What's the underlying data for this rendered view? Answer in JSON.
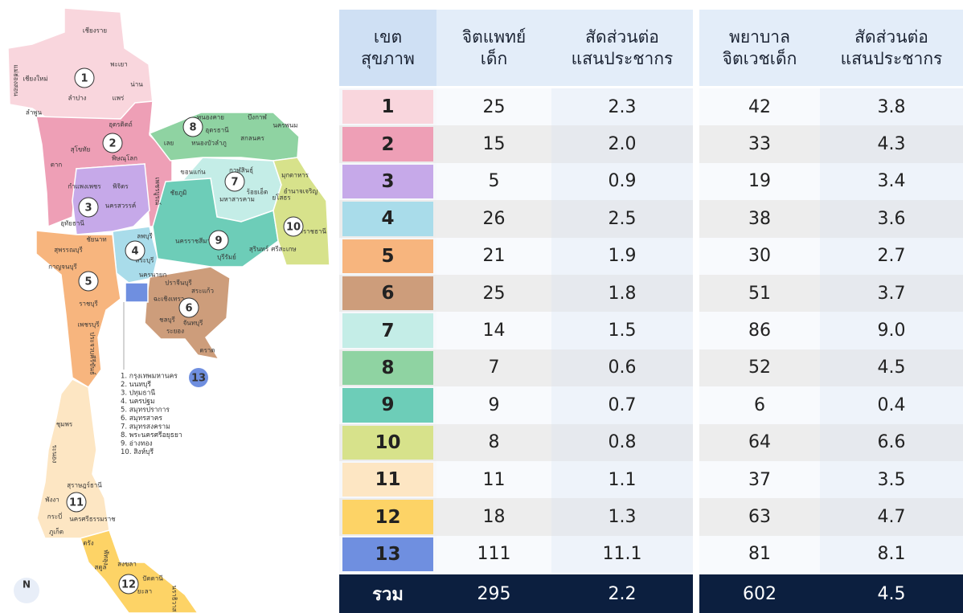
{
  "map": {
    "regions": [
      {
        "number": "1",
        "color": "#f9d6dd",
        "provinces": [
          "เชียงราย",
          "เชียงใหม่",
          "พะเยา",
          "น่าน",
          "แม่ฮ่องสอน",
          "ลำปาง",
          "แพร่",
          "ลำพูน"
        ]
      },
      {
        "number": "2",
        "color": "#ee9fb6",
        "provinces": [
          "อุตรดิตถ์",
          "สุโขทัย",
          "พิษณุโลก",
          "ตาก",
          "เพชรบูรณ์"
        ]
      },
      {
        "number": "3",
        "color": "#c6a9e9",
        "provinces": [
          "กำแพงเพชร",
          "พิจิตร",
          "นครสวรรค์",
          "อุทัยธานี",
          "ชัยนาท"
        ]
      },
      {
        "number": "4",
        "color": "#a9dcea",
        "provinces": [
          "ลพบุรี",
          "สระบุรี",
          "นครนายก"
        ]
      },
      {
        "number": "5",
        "color": "#f7b57e",
        "provinces": [
          "สุพรรณบุรี",
          "กาญจนบุรี",
          "ราชบุรี",
          "เพชรบุรี",
          "ประจวบคีรีขันธ์"
        ]
      },
      {
        "number": "6",
        "color": "#cd9d7b",
        "provinces": [
          "ปราจีนบุรี",
          "สระแก้ว",
          "ฉะเชิงเทรา",
          "ชลบุรี",
          "จันทบุรี",
          "ระยอง",
          "ตราด"
        ]
      },
      {
        "number": "7",
        "color": "#c4ede7",
        "provinces": [
          "ขอนแก่น",
          "กาฬสินธุ์",
          "มหาสารคาม",
          "ร้อยเอ็ด"
        ]
      },
      {
        "number": "8",
        "color": "#8fd3a2",
        "provinces": [
          "หนองคาย",
          "บึงกาฬ",
          "อุดรธานี",
          "สกลนคร",
          "นครพนม",
          "เลย",
          "หนองบัวลำภู"
        ]
      },
      {
        "number": "9",
        "color": "#6dcdb8",
        "provinces": [
          "ชัยภูมิ",
          "นครราชสีมา",
          "บุรีรัมย์",
          "สุรินทร์"
        ]
      },
      {
        "number": "10",
        "color": "#d7e28b",
        "provinces": [
          "มุกดาหาร",
          "ยโสธร",
          "อำนาจเจริญ",
          "อุบลราชธานี",
          "ศรีสะเกษ"
        ]
      },
      {
        "number": "11",
        "color": "#fde6c3",
        "provinces": [
          "ชุมพร",
          "ระนอง",
          "สุราษฎร์ธานี",
          "พังงา",
          "กระบี่",
          "นครศรีธรรมราช",
          "ภูเก็ต"
        ]
      },
      {
        "number": "12",
        "color": "#fdd366",
        "provinces": [
          "ตรัง",
          "พัทลุง",
          "สตูล",
          "สงขลา",
          "ปัตตานี",
          "ยะลา",
          "นราธิวาส"
        ]
      },
      {
        "number": "13",
        "color": "#6f8fe0",
        "provinces": []
      }
    ],
    "legend": [
      "1. กรุงเทพมหานคร",
      "2. นนทบุรี",
      "3. ปทุมธานี",
      "4. นครปฐม",
      "5. สมุทรปราการ",
      "6. สมุทรสาคร",
      "7. สมุทรสงคราม",
      "8. พระนครศรีอยุธยา",
      "9. อ่างทอง",
      "10. สิงห์บุรี"
    ],
    "logo": "N"
  },
  "table": {
    "headers": [
      [
        "เขต",
        "สุขภาพ"
      ],
      [
        "จิตแพทย์",
        "เด็ก"
      ],
      [
        "สัดส่วนต่อ",
        "แสนประชากร"
      ],
      [
        "พยาบาล",
        "จิตเวชเด็ก"
      ],
      [
        "สัดส่วนต่อ",
        "แสนประชากร"
      ]
    ],
    "rows": [
      [
        "1",
        "25",
        "2.3",
        "42",
        "3.8"
      ],
      [
        "2",
        "15",
        "2.0",
        "33",
        "4.3"
      ],
      [
        "3",
        "5",
        "0.9",
        "19",
        "3.4"
      ],
      [
        "4",
        "26",
        "2.5",
        "38",
        "3.6"
      ],
      [
        "5",
        "21",
        "1.9",
        "30",
        "2.7"
      ],
      [
        "6",
        "25",
        "1.8",
        "51",
        "3.7"
      ],
      [
        "7",
        "14",
        "1.5",
        "86",
        "9.0"
      ],
      [
        "8",
        "7",
        "0.6",
        "52",
        "4.5"
      ],
      [
        "9",
        "9",
        "0.7",
        "6",
        "0.4"
      ],
      [
        "10",
        "8",
        "0.8",
        "64",
        "6.6"
      ],
      [
        "11",
        "11",
        "1.1",
        "37",
        "3.5"
      ],
      [
        "12",
        "18",
        "1.3",
        "63",
        "4.7"
      ],
      [
        "13",
        "111",
        "11.1",
        "81",
        "8.1"
      ]
    ],
    "total": [
      "รวม",
      "295",
      "2.2",
      "602",
      "4.5"
    ]
  }
}
